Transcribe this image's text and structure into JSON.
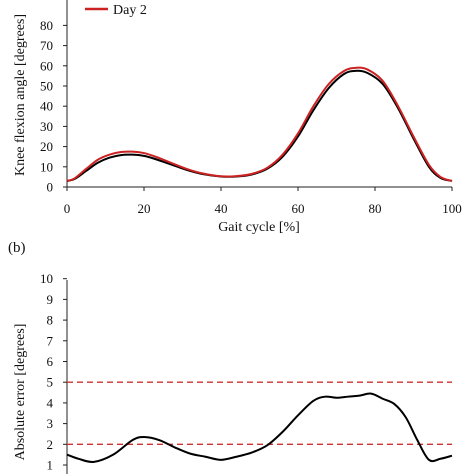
{
  "colors": {
    "day1": "#000000",
    "day2": "#cc2222",
    "threshold": "#cc3333",
    "axis": "#222222"
  },
  "chart_data": [
    {
      "panel": "",
      "type": "line",
      "legend": [
        {
          "name": "Day 2",
          "color": "#cc2222"
        }
      ],
      "xlabel": "Gait cycle [%]",
      "ylabel": "Knee flexion angle [degrees]",
      "xlim": [
        0,
        100
      ],
      "ylim": [
        0,
        80
      ],
      "xticks": [
        "0",
        "20",
        "40",
        "60",
        "80",
        "100"
      ],
      "yticks": [
        "0",
        "10",
        "20",
        "30",
        "40",
        "50",
        "60",
        "70",
        "80"
      ],
      "series": [
        {
          "color": "#000000",
          "x": [
            0,
            2,
            5,
            8,
            11,
            14,
            17,
            20,
            23,
            27,
            31,
            35,
            40,
            44,
            48,
            52,
            56,
            60,
            64,
            68,
            72,
            75,
            78,
            82,
            86,
            90,
            94,
            97,
            100
          ],
          "y": [
            3,
            4,
            8,
            12,
            14.5,
            15.8,
            16,
            15.4,
            13.8,
            11.2,
            8.5,
            6.5,
            5.2,
            5.2,
            6.2,
            9,
            15,
            25,
            38,
            49,
            56,
            57.5,
            56.5,
            51,
            39,
            24,
            10,
            4.5,
            3
          ]
        },
        {
          "name": "Day 2",
          "color": "#cc2222",
          "x": [
            0,
            2,
            5,
            8,
            11,
            14,
            17,
            20,
            23,
            27,
            31,
            35,
            40,
            44,
            48,
            52,
            56,
            60,
            64,
            68,
            72,
            75,
            78,
            82,
            86,
            90,
            94,
            97,
            100
          ],
          "y": [
            3,
            4.3,
            9,
            13.5,
            16,
            17.3,
            17.5,
            16.8,
            15,
            12,
            9,
            6.8,
            5.3,
            5.4,
            6.5,
            9.5,
            16,
            26.5,
            40,
            51,
            57.5,
            59,
            58.2,
            52.5,
            40,
            25,
            11,
            5,
            3
          ]
        }
      ]
    },
    {
      "panel": "(b)",
      "type": "line",
      "ylabel": "Absolute error [degrees]",
      "ylim": [
        1,
        10
      ],
      "xlim": [
        0,
        100
      ],
      "yticks": [
        "1",
        "2",
        "3",
        "4",
        "5",
        "6",
        "7",
        "8",
        "9",
        "10"
      ],
      "thresholds": [
        5,
        2
      ],
      "series": [
        {
          "color": "#000000",
          "x": [
            0,
            3,
            7,
            12,
            17,
            20,
            24,
            28,
            32,
            36,
            40,
            44,
            48,
            52,
            56,
            60,
            64,
            67,
            70,
            73,
            76,
            79,
            82,
            85,
            88,
            91,
            94,
            97,
            100
          ],
          "y": [
            1.5,
            1.3,
            1.15,
            1.5,
            2.2,
            2.35,
            2.2,
            1.85,
            1.55,
            1.4,
            1.25,
            1.4,
            1.6,
            1.95,
            2.6,
            3.4,
            4.1,
            4.3,
            4.25,
            4.3,
            4.35,
            4.45,
            4.2,
            3.95,
            3.3,
            2.2,
            1.25,
            1.3,
            1.45
          ]
        }
      ]
    }
  ]
}
